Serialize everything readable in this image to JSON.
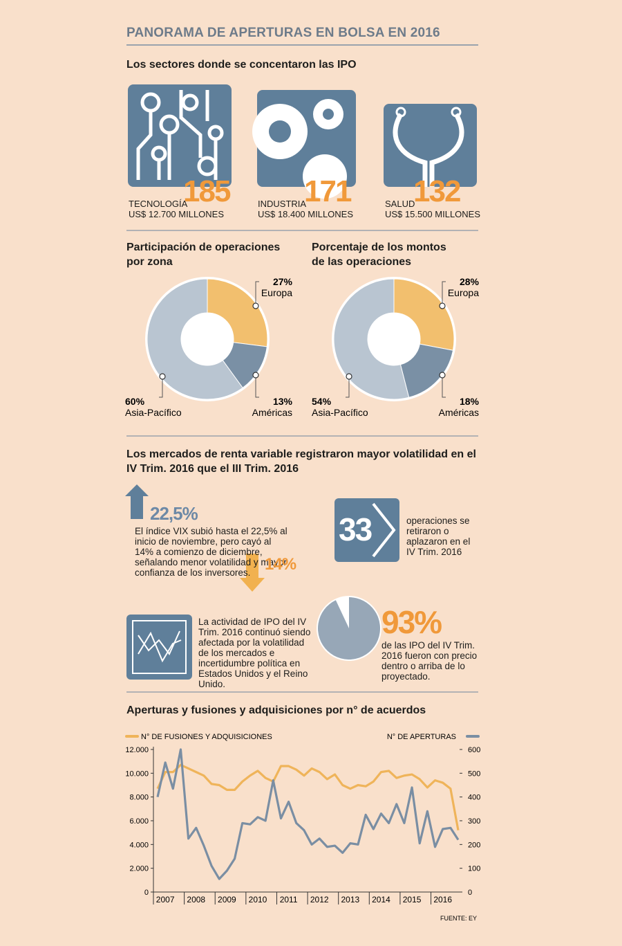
{
  "title": "PANORAMA DE APERTURAS EN BOLSA EN 2016",
  "sectors": {
    "heading": "Los sectores donde se concentaron las IPO",
    "items": [
      {
        "count": "185",
        "name": "TECNOLOGÍA",
        "amount": "US$ 12.700 MILLONES"
      },
      {
        "count": "171",
        "name": "INDUSTRIA",
        "amount": "US$ 18.400 MILLONES"
      },
      {
        "count": "132",
        "name": "SALUD",
        "amount": "US$ 15.500 MILLONES"
      }
    ]
  },
  "volatility": {
    "heading": "Los mercados de renta variable registraron mayor volatilidad en el IV Trim. 2016 que el III Trim. 2016",
    "vix_high": "22,5%",
    "vix_low": "14%",
    "vix_text": "El índice VIX subió hasta el 22,5% al inicio de noviembre, pero cayó al 14% a comienzo de diciembre, señalando menor volatilidad y mayor confianza de los inversores.",
    "postponed_count": "33",
    "postponed_text": "operaciones se retiraron o aplazaron en el IV Trim. 2016",
    "activity_text": "La actividad de IPO del IV Trim. 2016 continuó siendo afectada por la volatilidad de los mercados e incertidumbre política en Estados Unidos y el Reino Unido.",
    "price_text": "de las IPO del IV Trim. 2016 fueron con precio dentro o arriba de lo proyectado."
  },
  "chart_data": [
    {
      "type": "donut",
      "title": "Participación de operaciones por zona",
      "categories": [
        "Europa",
        "Américas",
        "Asia-Pacífico"
      ],
      "values": [
        27,
        13,
        60
      ],
      "value_labels": [
        "27%",
        "13%",
        "60%"
      ],
      "colors": [
        "#f2bf6e",
        "#7a90a5",
        "#b9c5d1"
      ]
    },
    {
      "type": "donut",
      "title": "Porcentaje de los montos de las operaciones",
      "categories": [
        "Europa",
        "Américas",
        "Asia-Pacífico"
      ],
      "values": [
        28,
        18,
        54
      ],
      "value_labels": [
        "28%",
        "18%",
        "54%"
      ],
      "colors": [
        "#f2bf6e",
        "#7a90a5",
        "#b9c5d1"
      ]
    },
    {
      "type": "pie",
      "values": [
        93
      ],
      "value_labels": [
        "93%"
      ],
      "color": "#97a7b7"
    },
    {
      "type": "line",
      "title": "Aperturas y fusiones y adquisiciones por n° de acuerdos",
      "categories": [
        null,
        "2007",
        null,
        null,
        null,
        "2008",
        null,
        null,
        null,
        "2009",
        null,
        null,
        null,
        "2010",
        null,
        null,
        null,
        "2011",
        null,
        null,
        null,
        "2012",
        null,
        null,
        null,
        "2013",
        null,
        null,
        null,
        "2014",
        null,
        null,
        null,
        "2015",
        null,
        null,
        null,
        "2016",
        null,
        null
      ],
      "series": [
        {
          "name": "N° DE FUSIONES Y ADQUISICIONES",
          "color": "#efb45a",
          "values": [
            8700,
            10100,
            10100,
            10700,
            10400,
            10100,
            9800,
            9100,
            9000,
            8600,
            8600,
            9300,
            9800,
            10200,
            9600,
            9300,
            10600,
            10600,
            10300,
            9800,
            10400,
            10100,
            9500,
            9900,
            9000,
            8700,
            9000,
            8900,
            9300,
            10100,
            10200,
            9600,
            9800,
            9900,
            9500,
            8800,
            9400,
            9200,
            8700,
            5200
          ]
        },
        {
          "name": "N° DE APERTURAS",
          "color": "#7a8ea3",
          "axis": "y2",
          "values": [
            400,
            545,
            435,
            600,
            225,
            270,
            195,
            110,
            55,
            90,
            140,
            290,
            285,
            315,
            300,
            470,
            310,
            380,
            290,
            260,
            200,
            225,
            190,
            195,
            165,
            205,
            200,
            325,
            265,
            330,
            290,
            370,
            290,
            440,
            205,
            340,
            190,
            265,
            270,
            220
          ]
        }
      ],
      "ylim": [
        0,
        12000
      ],
      "yticks": [
        0,
        {
          "value": 2000,
          "label": "2.000"
        },
        {
          "value": 4000,
          "label": "4.000"
        },
        {
          "value": 6000,
          "label": "6.000"
        },
        {
          "value": 8000,
          "label": "8.000"
        },
        {
          "value": 10000,
          "label": "10.000"
        },
        {
          "value": 12000,
          "label": "12.000"
        }
      ],
      "y2lim": [
        0,
        600
      ],
      "y2ticks": [
        0,
        100,
        200,
        300,
        400,
        500,
        600
      ],
      "grid": false,
      "source": "FUENTE: EY"
    }
  ]
}
